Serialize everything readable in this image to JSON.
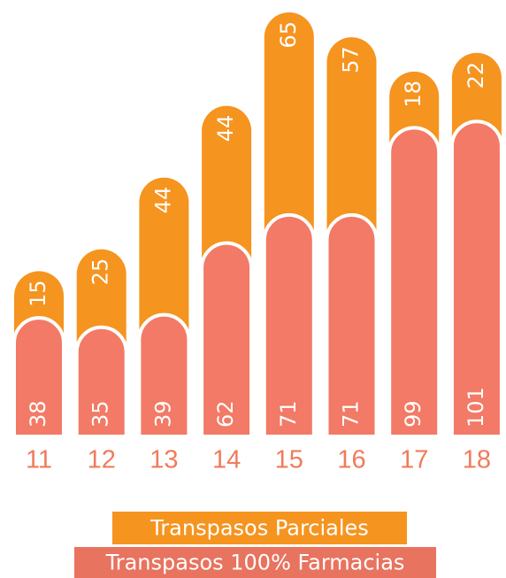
{
  "chart_data": {
    "type": "stacked_bar",
    "categories": [
      "11",
      "12",
      "13",
      "14",
      "15",
      "16",
      "17",
      "18"
    ],
    "series": [
      {
        "name": "Transpasos 100% Farmacias",
        "color": "#f27a66",
        "values": [
          38,
          35,
          39,
          62,
          71,
          71,
          99,
          101
        ]
      },
      {
        "name": "Transpasos Parciales",
        "color": "#f5941f",
        "values": [
          15,
          25,
          44,
          44,
          65,
          57,
          18,
          22
        ]
      }
    ]
  }
}
